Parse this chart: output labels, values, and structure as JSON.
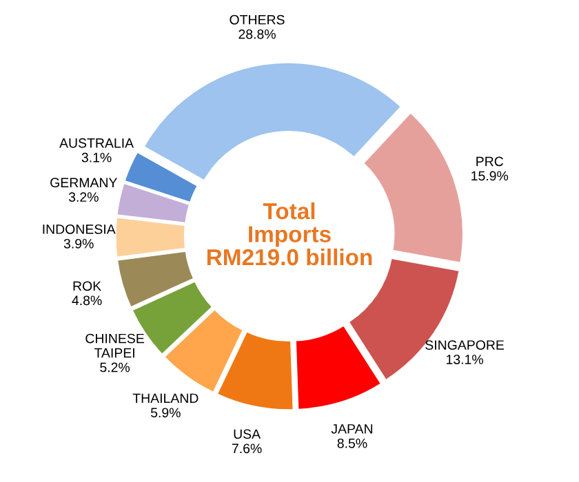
{
  "chart_data": {
    "type": "donut",
    "title": "Total Imports RM219.0 billion",
    "categories": [
      "PRC",
      "SINGAPORE",
      "JAPAN",
      "USA",
      "THAILAND",
      "CHINESE TAIPEI",
      "ROK",
      "INDONESIA",
      "GERMANY",
      "AUSTRALIA",
      "OTHERS"
    ],
    "values": [
      15.9,
      13.1,
      8.5,
      7.6,
      5.9,
      5.2,
      4.8,
      3.9,
      3.2,
      3.1,
      28.8
    ],
    "colors": [
      "#e6a09c",
      "#cd5350",
      "#ff0000",
      "#f07814",
      "#ffa64d",
      "#77a23a",
      "#9b8a58",
      "#fdd09a",
      "#c3aed8",
      "#558ed5",
      "#9dc3ee"
    ],
    "value_labels": [
      "15.9%",
      "13.1%",
      "8.5%",
      "7.6%",
      "5.9%",
      "5.2%",
      "4.8%",
      "3.9%",
      "3.2%",
      "3.1%",
      "28.8%"
    ],
    "legend": false
  }
}
